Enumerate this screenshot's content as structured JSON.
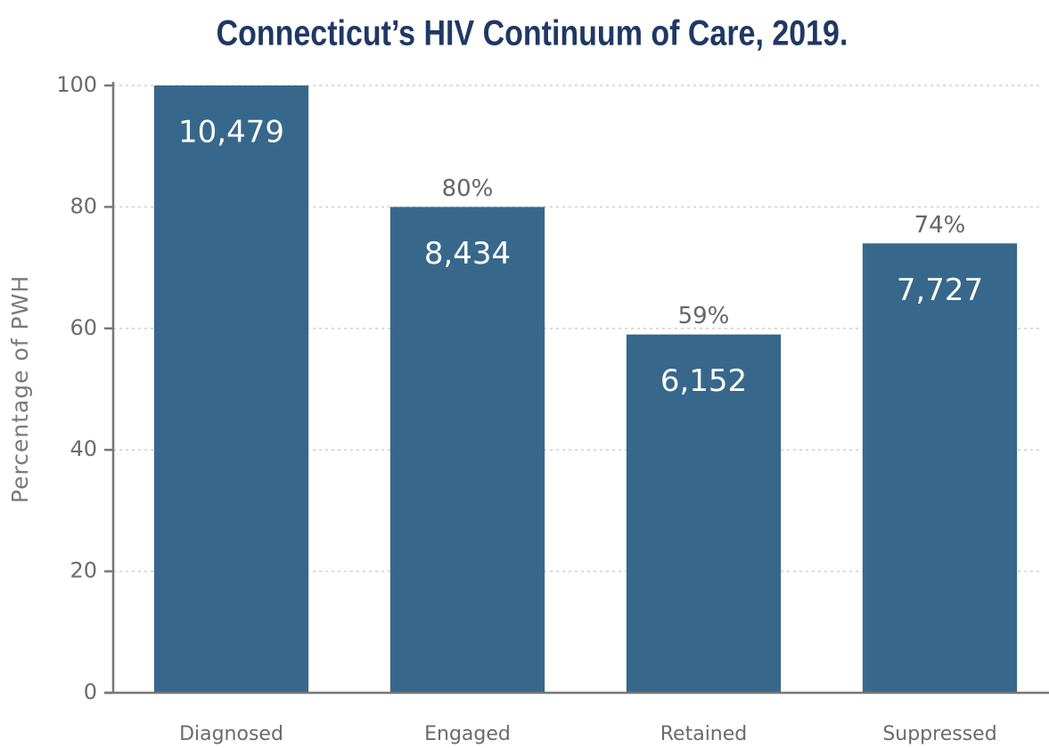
{
  "chart_data": {
    "type": "bar",
    "title": "Connecticut’s HIV Continuum of Care, 2019.",
    "y_label": "Percentage of PWH",
    "categories": [
      "Diagnosed",
      "Engaged",
      "Retained",
      "Suppressed"
    ],
    "values": [
      100,
      80,
      59,
      74
    ],
    "value_labels": [
      null,
      "80%",
      "59%",
      "74%"
    ],
    "count_labels": [
      "10,479",
      "8,434",
      "6,152",
      "7,727"
    ],
    "color": "#37688c",
    "ylim": [
      0,
      100
    ],
    "yticks": [
      0,
      20,
      40,
      60,
      80,
      100
    ],
    "grid": true
  }
}
